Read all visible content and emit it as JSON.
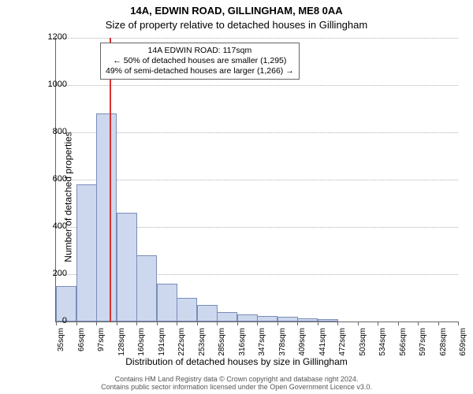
{
  "titles": {
    "main": "14A, EDWIN ROAD, GILLINGHAM, ME8 0AA",
    "sub": "Size of property relative to detached houses in Gillingham",
    "xlabel": "Distribution of detached houses by size in Gillingham",
    "ylabel": "Number of detached properties"
  },
  "chart": {
    "type": "histogram",
    "background_color": "#ffffff",
    "bar_fill": "#cdd8ee",
    "bar_border": "#7a8db8",
    "grid_color": "#b0b0b0",
    "axis_color": "#666666",
    "marker_color": "#d93030",
    "ylim": [
      0,
      1200
    ],
    "yticks": [
      0,
      200,
      400,
      600,
      800,
      1000,
      1200
    ],
    "xticks": [
      "35sqm",
      "66sqm",
      "97sqm",
      "128sqm",
      "160sqm",
      "191sqm",
      "222sqm",
      "253sqm",
      "285sqm",
      "316sqm",
      "347sqm",
      "378sqm",
      "409sqm",
      "441sqm",
      "472sqm",
      "503sqm",
      "534sqm",
      "566sqm",
      "597sqm",
      "628sqm",
      "659sqm"
    ],
    "values": [
      150,
      580,
      880,
      460,
      280,
      160,
      100,
      70,
      40,
      30,
      25,
      20,
      12,
      10,
      0,
      0,
      0,
      0,
      0,
      0
    ],
    "marker_index": 2.65,
    "title_fontsize": 14,
    "label_fontsize": 13,
    "tick_fontsize": 11
  },
  "annotation": {
    "line1": "14A EDWIN ROAD: 117sqm",
    "line2": "← 50% of detached houses are smaller (1,295)",
    "line3": "49% of semi-detached houses are larger (1,266) →"
  },
  "footer": {
    "line1": "Contains HM Land Registry data © Crown copyright and database right 2024.",
    "line2": "Contains public sector information licensed under the Open Government Licence v3.0."
  }
}
